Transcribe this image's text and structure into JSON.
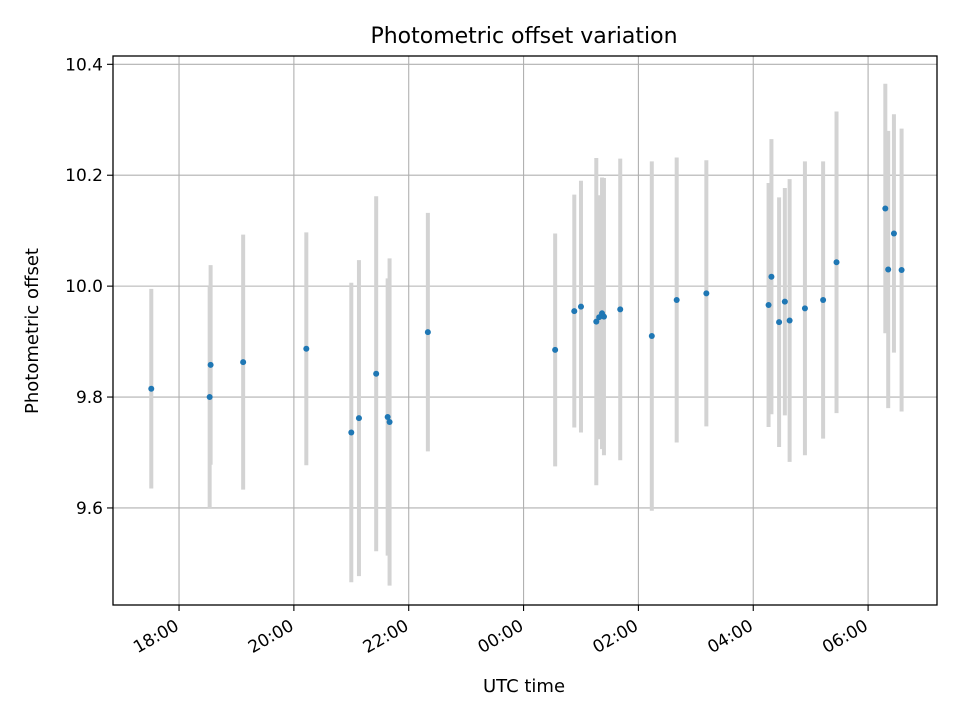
{
  "chart_data": {
    "type": "scatter",
    "title": "Photometric offset variation",
    "xlabel": "UTC time",
    "ylabel": "Photometric offset",
    "x_tick_labels": [
      "18:00",
      "20:00",
      "22:00",
      "00:00",
      "02:00",
      "04:00",
      "06:00"
    ],
    "y_tick_labels": [
      "9.6",
      "9.8",
      "10.0",
      "10.2",
      "10.4"
    ],
    "xlim_hours_since_17h": [
      -0.15,
      14.2
    ],
    "ylim": [
      9.425,
      10.415
    ],
    "grid": true,
    "colors": {
      "point": "#1f77b4",
      "errorbar": "#d3d3d3",
      "grid": "#b0b0b0"
    },
    "points": [
      {
        "time": "17:31",
        "y": 9.815,
        "err": 0.18
      },
      {
        "time": "18:32",
        "y": 9.8,
        "err": 0.2
      },
      {
        "time": "18:33",
        "y": 9.858,
        "err": 0.18
      },
      {
        "time": "19:07",
        "y": 9.863,
        "err": 0.23
      },
      {
        "time": "20:13",
        "y": 9.887,
        "err": 0.21
      },
      {
        "time": "21:00",
        "y": 9.736,
        "err": 0.27
      },
      {
        "time": "21:08",
        "y": 9.762,
        "err": 0.285
      },
      {
        "time": "21:26",
        "y": 9.842,
        "err": 0.32
      },
      {
        "time": "21:38",
        "y": 9.764,
        "err": 0.25
      },
      {
        "time": "21:40",
        "y": 9.755,
        "err": 0.295
      },
      {
        "time": "22:20",
        "y": 9.917,
        "err": 0.215
      },
      {
        "time": "00:33",
        "y": 9.885,
        "err": 0.21
      },
      {
        "time": "00:53",
        "y": 9.955,
        "err": 0.21
      },
      {
        "time": "01:00",
        "y": 9.963,
        "err": 0.227
      },
      {
        "time": "01:16",
        "y": 9.936,
        "err": 0.295
      },
      {
        "time": "01:19",
        "y": 9.944,
        "err": 0.22
      },
      {
        "time": "01:22",
        "y": 9.951,
        "err": 0.245
      },
      {
        "time": "01:24",
        "y": 9.945,
        "err": 0.25
      },
      {
        "time": "01:41",
        "y": 9.958,
        "err": 0.272
      },
      {
        "time": "02:14",
        "y": 9.91,
        "err": 0.315
      },
      {
        "time": "02:40",
        "y": 9.975,
        "err": 0.257
      },
      {
        "time": "03:11",
        "y": 9.987,
        "err": 0.24
      },
      {
        "time": "04:16",
        "y": 9.966,
        "err": 0.22
      },
      {
        "time": "04:19",
        "y": 10.017,
        "err": 0.248
      },
      {
        "time": "04:27",
        "y": 9.935,
        "err": 0.225
      },
      {
        "time": "04:33",
        "y": 9.972,
        "err": 0.205
      },
      {
        "time": "04:38",
        "y": 9.938,
        "err": 0.255
      },
      {
        "time": "04:54",
        "y": 9.96,
        "err": 0.265
      },
      {
        "time": "05:13",
        "y": 9.975,
        "err": 0.25
      },
      {
        "time": "05:27",
        "y": 10.043,
        "err": 0.272
      },
      {
        "time": "06:18",
        "y": 10.14,
        "err": 0.225
      },
      {
        "time": "06:21",
        "y": 10.03,
        "err": 0.25
      },
      {
        "time": "06:27",
        "y": 10.095,
        "err": 0.215
      },
      {
        "time": "06:35",
        "y": 10.029,
        "err": 0.255
      }
    ]
  }
}
